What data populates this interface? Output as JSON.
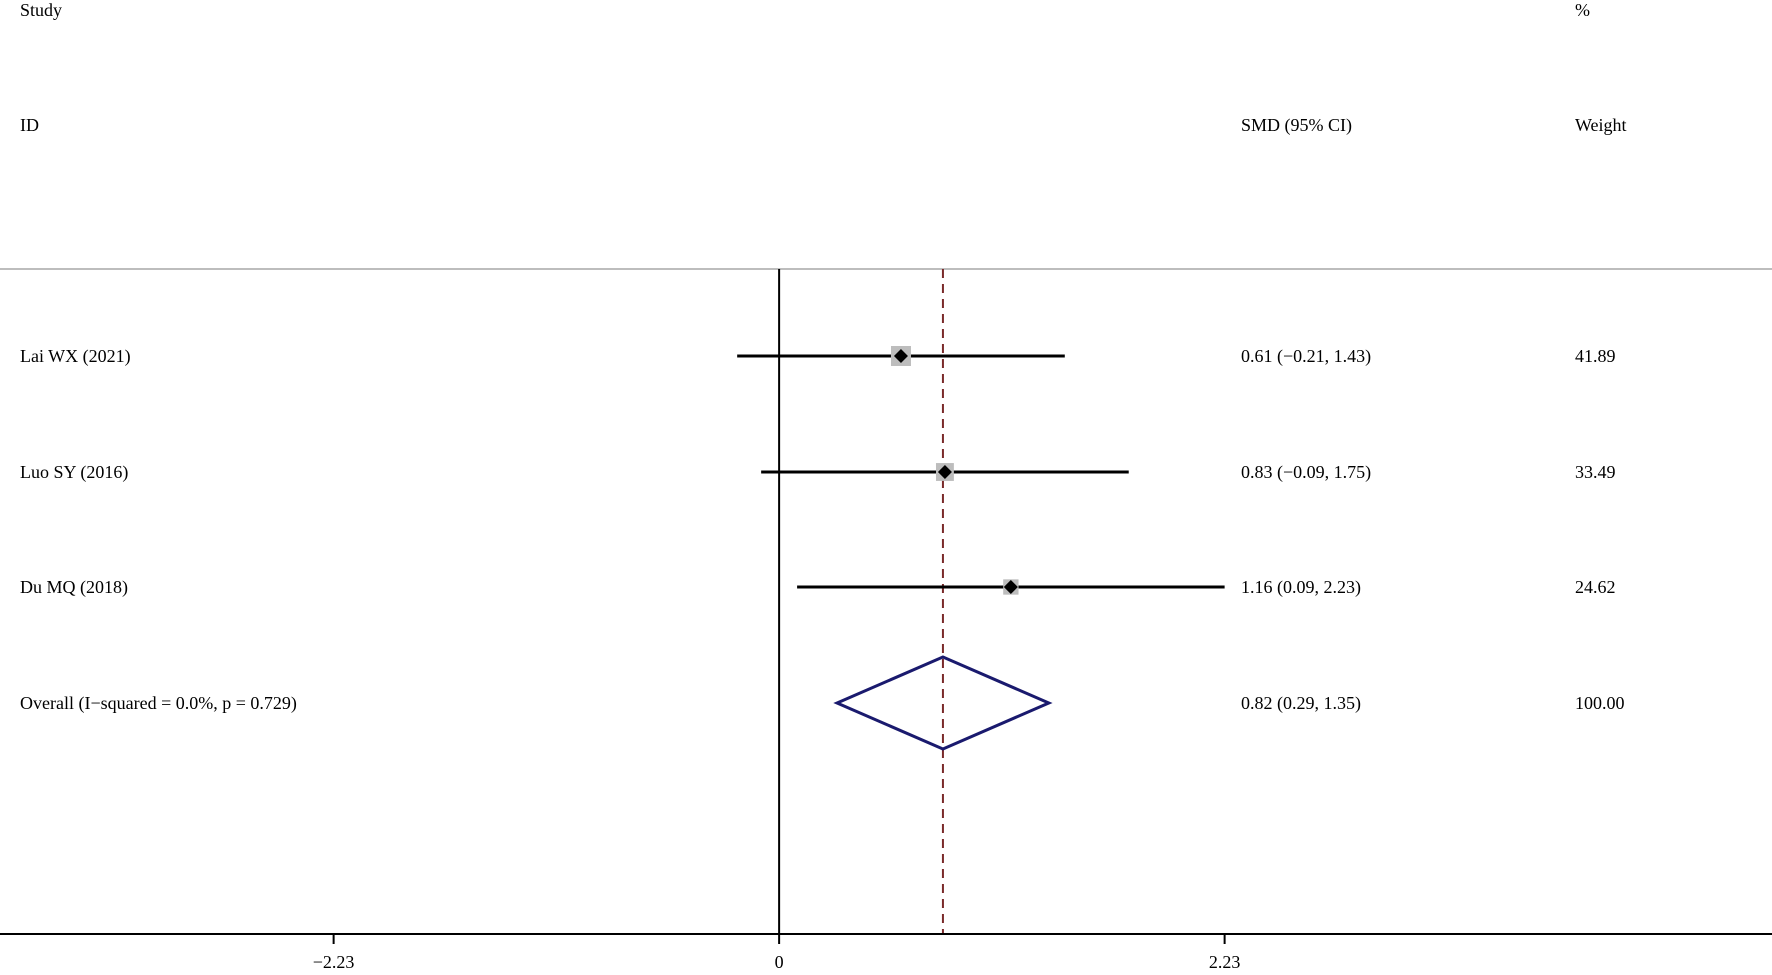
{
  "chart_data": {
    "type": "forest",
    "headers": {
      "study_line1": "Study",
      "study_line2": "ID",
      "estimate": "SMD (95% CI)",
      "weight_line1": "%",
      "weight_line2": "Weight"
    },
    "studies": [
      {
        "label": "Lai WX (2021)",
        "estimate": 0.61,
        "ci_low": -0.21,
        "ci_high": 1.43,
        "ci_text": "0.61 (−0.21, 1.43)",
        "weight": 41.89,
        "weight_text": "41.89"
      },
      {
        "label": "Luo SY (2016)",
        "estimate": 0.83,
        "ci_low": -0.09,
        "ci_high": 1.75,
        "ci_text": "0.83 (−0.09, 1.75)",
        "weight": 33.49,
        "weight_text": "33.49"
      },
      {
        "label": "Du MQ (2018)",
        "estimate": 1.16,
        "ci_low": 0.09,
        "ci_high": 2.23,
        "ci_text": "1.16 (0.09, 2.23)",
        "weight": 24.62,
        "weight_text": "24.62"
      }
    ],
    "overall": {
      "label": "Overall  (I−squared = 0.0%, p = 0.729)",
      "estimate": 0.82,
      "ci_low": 0.29,
      "ci_high": 1.35,
      "ci_text": "0.82 (0.29, 1.35)",
      "weight_text": "100.00"
    },
    "x_ticks": [
      {
        "value": -2.23,
        "label": "−2.23"
      },
      {
        "value": 0,
        "label": "0"
      },
      {
        "value": 2.23,
        "label": "2.23"
      }
    ],
    "xlim": [
      -3.9,
      4.97
    ],
    "null_line": 0,
    "colors": {
      "text": "#000000",
      "ci_line": "#000000",
      "weight_box": "#bdbdbd",
      "point": "#000000",
      "diamond": "#1a1a6e",
      "overall_line": "#7a2a2a",
      "header_rule": "#bdbdbd"
    }
  }
}
